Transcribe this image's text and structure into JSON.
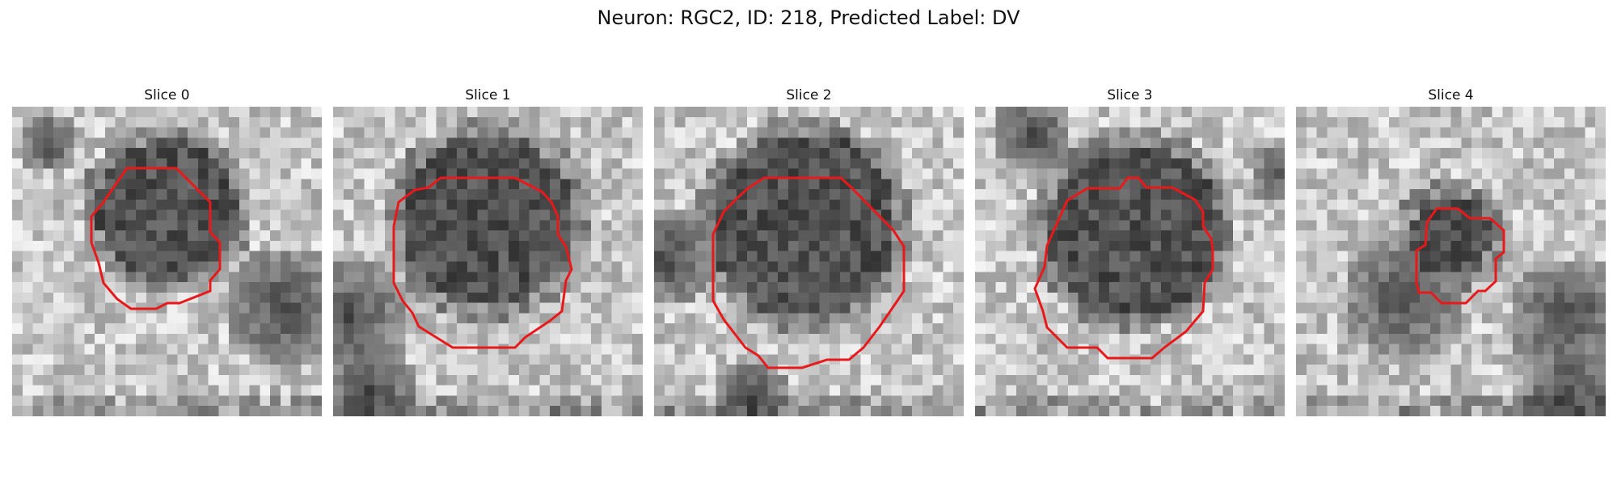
{
  "figure": {
    "title": "Neuron: RGC2, ID: 218, Predicted Label: DV"
  },
  "panels": [
    {
      "title": "Slice 0",
      "seed": 11,
      "contour_color": "#e8191a"
    },
    {
      "title": "Slice 1",
      "seed": 23,
      "contour_color": "#e8191a"
    },
    {
      "title": "Slice 2",
      "seed": 37,
      "contour_color": "#e8191a"
    },
    {
      "title": "Slice 3",
      "seed": 41,
      "contour_color": "#e8191a"
    },
    {
      "title": "Slice 4",
      "seed": 59,
      "contour_color": "#e8191a"
    }
  ],
  "style": {
    "colormap": "gray"
  }
}
